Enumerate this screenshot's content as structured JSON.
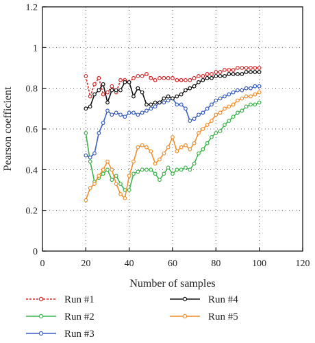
{
  "chart_data": {
    "type": "line",
    "title": "",
    "xlabel": "Number of samples",
    "ylabel": "Pearson coefficient",
    "xlim": [
      0,
      120
    ],
    "ylim": [
      0,
      1.2
    ],
    "xticks": [
      0,
      20,
      40,
      60,
      80,
      100,
      120
    ],
    "yticks": [
      0,
      0.2,
      0.4,
      0.6,
      0.8,
      1,
      1.2
    ],
    "xtick_labels": [
      "0",
      "20",
      "40",
      "60",
      "80",
      "100",
      "120"
    ],
    "ytick_labels": [
      "0",
      "0.2",
      "0.4",
      "0.6",
      "0.8",
      "1",
      "1.2"
    ],
    "grid": true,
    "legend_position": "bottom",
    "x": [
      20,
      22,
      24,
      26,
      28,
      30,
      32,
      34,
      36,
      38,
      40,
      42,
      44,
      46,
      48,
      50,
      52,
      54,
      56,
      58,
      60,
      62,
      64,
      66,
      68,
      70,
      72,
      74,
      76,
      78,
      80,
      82,
      84,
      86,
      88,
      90,
      92,
      94,
      96,
      98,
      100
    ],
    "series": [
      {
        "name": "Run #1",
        "color": "#d62728",
        "style": "dotted",
        "values": [
          0.86,
          0.76,
          0.82,
          0.85,
          0.77,
          0.78,
          0.81,
          0.78,
          0.84,
          0.84,
          0.83,
          0.85,
          0.86,
          0.86,
          0.87,
          0.85,
          0.84,
          0.85,
          0.85,
          0.85,
          0.85,
          0.84,
          0.84,
          0.84,
          0.84,
          0.85,
          0.86,
          0.86,
          0.87,
          0.87,
          0.88,
          0.88,
          0.89,
          0.89,
          0.89,
          0.9,
          0.9,
          0.9,
          0.9,
          0.9,
          0.9
        ]
      },
      {
        "name": "Run #2",
        "color": "#3cb44b",
        "style": "solid",
        "values": [
          0.58,
          0.44,
          0.34,
          0.36,
          0.38,
          0.4,
          0.35,
          0.37,
          0.33,
          0.3,
          0.3,
          0.38,
          0.39,
          0.4,
          0.4,
          0.4,
          0.38,
          0.35,
          0.38,
          0.41,
          0.38,
          0.4,
          0.4,
          0.41,
          0.4,
          0.43,
          0.48,
          0.5,
          0.53,
          0.56,
          0.58,
          0.59,
          0.62,
          0.64,
          0.66,
          0.68,
          0.69,
          0.71,
          0.72,
          0.72,
          0.73
        ]
      },
      {
        "name": "Run #3",
        "color": "#3a5fbf",
        "style": "solid",
        "values": [
          0.47,
          0.46,
          0.48,
          0.58,
          0.63,
          0.69,
          0.67,
          0.68,
          0.67,
          0.66,
          0.68,
          0.68,
          0.67,
          0.68,
          0.69,
          0.7,
          0.71,
          0.73,
          0.73,
          0.74,
          0.75,
          0.72,
          0.72,
          0.7,
          0.64,
          0.65,
          0.67,
          0.68,
          0.7,
          0.72,
          0.74,
          0.75,
          0.76,
          0.77,
          0.78,
          0.79,
          0.79,
          0.8,
          0.8,
          0.81,
          0.81
        ]
      },
      {
        "name": "Run #4",
        "color": "#111111",
        "style": "solid",
        "values": [
          0.7,
          0.71,
          0.77,
          0.79,
          0.82,
          0.73,
          0.79,
          0.79,
          0.79,
          0.83,
          0.83,
          0.76,
          0.8,
          0.78,
          0.72,
          0.72,
          0.73,
          0.73,
          0.75,
          0.76,
          0.75,
          0.76,
          0.77,
          0.79,
          0.8,
          0.81,
          0.83,
          0.84,
          0.85,
          0.85,
          0.86,
          0.86,
          0.86,
          0.87,
          0.87,
          0.87,
          0.87,
          0.88,
          0.88,
          0.88,
          0.88
        ]
      },
      {
        "name": "Run #5",
        "color": "#f28e2b",
        "style": "solid",
        "values": [
          0.25,
          0.31,
          0.33,
          0.37,
          0.4,
          0.44,
          0.4,
          0.33,
          0.28,
          0.26,
          0.37,
          0.44,
          0.51,
          0.52,
          0.51,
          0.49,
          0.43,
          0.45,
          0.48,
          0.51,
          0.56,
          0.49,
          0.51,
          0.52,
          0.5,
          0.53,
          0.58,
          0.6,
          0.62,
          0.64,
          0.67,
          0.68,
          0.7,
          0.71,
          0.72,
          0.74,
          0.75,
          0.76,
          0.76,
          0.77,
          0.78
        ]
      }
    ]
  }
}
